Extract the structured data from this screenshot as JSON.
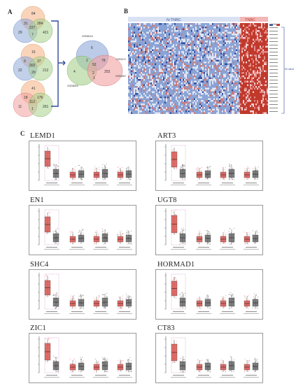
{
  "figure": {
    "panel_a_label": "A",
    "panel_b_label": "B",
    "panel_c_label": "C",
    "colors": {
      "venn_orange": "#f4b183",
      "venn_blue": "#8fa9d8",
      "venn_green": "#a9d18e",
      "venn_red": "#f2a0a0",
      "heat_red": "#c0392b",
      "heat_blue": "#2f4fa0",
      "box_red": "#d9534f",
      "box_grey": "#555555",
      "bracket": "#2e4a9a"
    }
  },
  "panel_a": {
    "venn1": [
      "84",
      "31",
      "284",
      "227",
      "29",
      "7",
      "421"
    ],
    "venn2": [
      "15",
      "9",
      "37",
      "302",
      "22",
      "20",
      "212"
    ],
    "venn3": [
      "41",
      "18",
      "176",
      "112",
      "11",
      "1",
      "261"
    ],
    "venn_combined": {
      "set_labels": [
        "GSE65216",
        "GSE38959",
        "GSE45827",
        "GSE61724"
      ],
      "numbers": [
        "6",
        "2",
        "78",
        "52",
        "4",
        "2",
        "253",
        "1"
      ]
    }
  },
  "panel_b": {
    "group_left": "N-TNBC",
    "group_right": "TNBC",
    "annotation": "52 identified targeted genes"
  },
  "panel_c": {
    "genes": [
      "LEMD1",
      "ART3",
      "EN1",
      "UGT8",
      "SHC4",
      "HORMAD1",
      "ZIC1",
      "CT83"
    ]
  }
}
